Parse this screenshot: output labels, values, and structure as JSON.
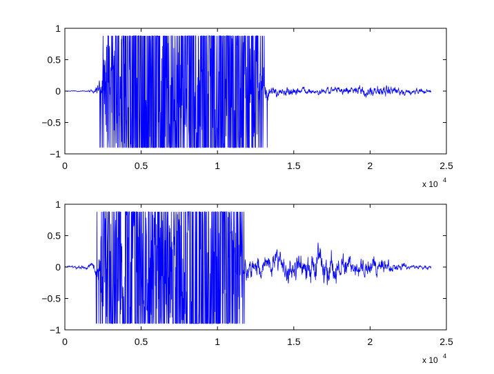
{
  "chart_data": [
    {
      "type": "line",
      "title": "",
      "xlabel": "",
      "ylabel": "",
      "xlim": [
        0,
        25000
      ],
      "ylim": [
        -1,
        1
      ],
      "x_ticks": [
        0,
        5000,
        10000,
        15000,
        20000,
        25000
      ],
      "x_tick_labels": [
        "0",
        "0.5",
        "1",
        "1.5",
        "2",
        "2.5"
      ],
      "y_ticks": [
        1,
        0.5,
        0,
        -0.5,
        -1
      ],
      "y_tick_labels": [
        "1",
        "0.5",
        "0",
        "−0.5",
        "−1"
      ],
      "x_multiplier_label": "x 10",
      "x_multiplier_exponent": "4",
      "grid": false,
      "series": [
        {
          "color": "#0000ff",
          "x_range": [
            0,
            24000
          ],
          "clip": [
            -0.9,
            0.88
          ],
          "envelope": [
            {
              "x": 0,
              "amp": 0.01,
              "clip_density": 0
            },
            {
              "x": 1400,
              "amp": 0.02,
              "clip_density": 0
            },
            {
              "x": 1900,
              "amp": 0.08,
              "clip_density": 0
            },
            {
              "x": 2200,
              "amp": 0.3,
              "clip_density": 0.05
            },
            {
              "x": 2600,
              "amp": 0.75,
              "clip_density": 0.3
            },
            {
              "x": 3500,
              "amp": 0.8,
              "clip_density": 0.55
            },
            {
              "x": 5500,
              "amp": 0.9,
              "clip_density": 0.8
            },
            {
              "x": 7800,
              "amp": 0.8,
              "clip_density": 0.55
            },
            {
              "x": 10000,
              "amp": 0.9,
              "clip_density": 0.8
            },
            {
              "x": 12400,
              "amp": 0.7,
              "clip_density": 0.55
            },
            {
              "x": 13000,
              "amp": 0.6,
              "clip_density": 0.25
            },
            {
              "x": 13400,
              "amp": 0.18,
              "clip_density": 0
            },
            {
              "x": 16000,
              "amp": 0.1,
              "clip_density": 0
            },
            {
              "x": 19000,
              "amp": 0.13,
              "clip_density": 0
            },
            {
              "x": 21000,
              "amp": 0.2,
              "clip_density": 0
            },
            {
              "x": 22500,
              "amp": 0.1,
              "clip_density": 0
            },
            {
              "x": 24000,
              "amp": 0.05,
              "clip_density": 0
            }
          ]
        }
      ]
    },
    {
      "type": "line",
      "title": "",
      "xlabel": "",
      "ylabel": "",
      "xlim": [
        0,
        25000
      ],
      "ylim": [
        -1,
        1
      ],
      "x_ticks": [
        0,
        5000,
        10000,
        15000,
        20000,
        25000
      ],
      "x_tick_labels": [
        "0",
        "0.5",
        "1",
        "1.5",
        "2",
        "2.5"
      ],
      "y_ticks": [
        1,
        0.5,
        0,
        -0.5,
        -1
      ],
      "y_tick_labels": [
        "1",
        "0.5",
        "0",
        "−0.5",
        "−1"
      ],
      "x_multiplier_label": "x 10",
      "x_multiplier_exponent": "4",
      "grid": false,
      "series": [
        {
          "color": "#0000ff",
          "x_range": [
            0,
            24000
          ],
          "clip": [
            -0.9,
            0.88
          ],
          "envelope": [
            {
              "x": 0,
              "amp": 0.02,
              "clip_density": 0
            },
            {
              "x": 700,
              "amp": 0.04,
              "clip_density": 0
            },
            {
              "x": 1800,
              "amp": 0.08,
              "clip_density": 0
            },
            {
              "x": 2200,
              "amp": 0.35,
              "clip_density": 0.1
            },
            {
              "x": 2600,
              "amp": 0.8,
              "clip_density": 0.4
            },
            {
              "x": 4500,
              "amp": 0.9,
              "clip_density": 0.8
            },
            {
              "x": 6500,
              "amp": 0.75,
              "clip_density": 0.5
            },
            {
              "x": 9000,
              "amp": 0.9,
              "clip_density": 0.8
            },
            {
              "x": 11000,
              "amp": 0.85,
              "clip_density": 0.7
            },
            {
              "x": 11500,
              "amp": 0.6,
              "clip_density": 0.3
            },
            {
              "x": 12000,
              "amp": 0.35,
              "clip_density": 0
            },
            {
              "x": 15000,
              "amp": 0.35,
              "clip_density": 0
            },
            {
              "x": 17000,
              "amp": 0.55,
              "clip_density": 0
            },
            {
              "x": 19000,
              "amp": 0.3,
              "clip_density": 0
            },
            {
              "x": 21000,
              "amp": 0.25,
              "clip_density": 0
            },
            {
              "x": 22500,
              "amp": 0.08,
              "clip_density": 0
            },
            {
              "x": 24000,
              "amp": 0.05,
              "clip_density": 0
            }
          ]
        }
      ]
    }
  ]
}
